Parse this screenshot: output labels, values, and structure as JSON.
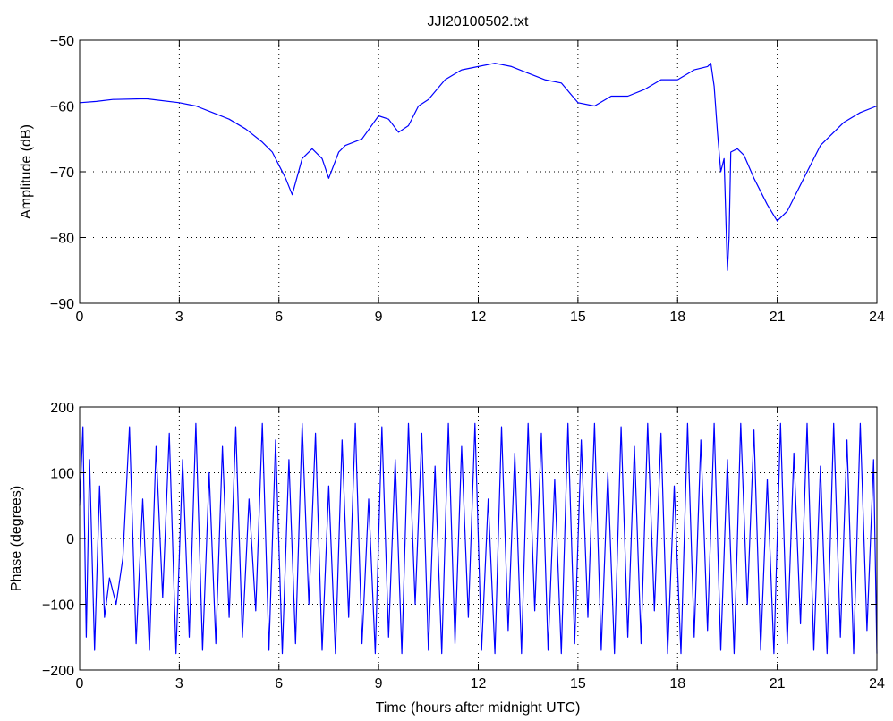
{
  "figure": {
    "title": "JJI20100502.txt"
  },
  "chart_data": [
    {
      "type": "line",
      "title": "JJI20100502.txt",
      "xlabel": "",
      "ylabel": "Amplitude (dB)",
      "xlim": [
        0,
        24
      ],
      "ylim": [
        -90,
        -50
      ],
      "xticks": [
        0,
        3,
        6,
        9,
        12,
        15,
        18,
        21,
        24
      ],
      "yticks": [
        -90,
        -80,
        -70,
        -60,
        -50
      ],
      "grid": true,
      "line_color": "#0000ff",
      "series": [
        {
          "name": "",
          "x": [
            0,
            0.5,
            1,
            2,
            3,
            3.5,
            4,
            4.5,
            5,
            5.5,
            5.8,
            6.2,
            6.4,
            6.7,
            7.0,
            7.3,
            7.5,
            7.8,
            8.0,
            8.5,
            9.0,
            9.3,
            9.6,
            9.9,
            10.2,
            10.5,
            11,
            11.5,
            12,
            12.5,
            13,
            13.5,
            14,
            14.5,
            15,
            15.5,
            16,
            16.5,
            17,
            17.5,
            18,
            18.5,
            18.9,
            19.0,
            19.1,
            19.2,
            19.3,
            19.4,
            19.5,
            19.55,
            19.6,
            19.8,
            20.0,
            20.3,
            20.7,
            21.0,
            21.3,
            21.8,
            22.3,
            23,
            23.5,
            24
          ],
          "y": [
            -59.5,
            -59.3,
            -59,
            -58.9,
            -59.5,
            -60,
            -61,
            -62,
            -63.5,
            -65.5,
            -67,
            -71,
            -73.5,
            -68,
            -66.5,
            -68,
            -71,
            -67,
            -66,
            -65,
            -61.5,
            -62,
            -64,
            -63,
            -60,
            -59,
            -56,
            -54.5,
            -54,
            -53.5,
            -54,
            -55,
            -56,
            -56.5,
            -59.5,
            -60,
            -58.5,
            -58.5,
            -57.5,
            -56,
            -56,
            -54.5,
            -54,
            -53.5,
            -57,
            -64,
            -70,
            -68,
            -85,
            -80,
            -67,
            -66.5,
            -67.5,
            -71,
            -75,
            -77.5,
            -76,
            -71,
            -66,
            -62.5,
            -61,
            -60
          ]
        }
      ]
    },
    {
      "type": "line",
      "title": "",
      "xlabel": "Time (hours after midnight UTC)",
      "ylabel": "Phase (degrees)",
      "xlim": [
        0,
        24
      ],
      "ylim": [
        -200,
        200
      ],
      "xticks": [
        0,
        3,
        6,
        9,
        12,
        15,
        18,
        21,
        24
      ],
      "yticks": [
        -200,
        -100,
        0,
        100,
        200
      ],
      "grid": true,
      "line_color": "#0000ff",
      "phase_wrap": [
        -180,
        180
      ],
      "series": [
        {
          "name": "",
          "x": [
            0,
            0.1,
            0.2,
            0.3,
            0.45,
            0.6,
            0.75,
            0.9,
            1.1,
            1.3,
            1.5,
            1.7,
            1.9,
            2.1,
            2.3,
            2.5,
            2.7,
            2.9,
            3.1,
            3.3,
            3.5,
            3.7,
            3.9,
            4.1,
            4.3,
            4.5,
            4.7,
            4.9,
            5.1,
            5.3,
            5.5,
            5.7,
            5.9,
            6.1,
            6.3,
            6.5,
            6.7,
            6.9,
            7.1,
            7.3,
            7.5,
            7.7,
            7.9,
            8.1,
            8.3,
            8.5,
            8.7,
            8.9,
            9.1,
            9.3,
            9.5,
            9.7,
            9.9,
            10.1,
            10.3,
            10.5,
            10.7,
            10.9,
            11.1,
            11.3,
            11.5,
            11.7,
            11.9,
            12.1,
            12.3,
            12.5,
            12.7,
            12.9,
            13.1,
            13.3,
            13.5,
            13.7,
            13.9,
            14.1,
            14.3,
            14.5,
            14.7,
            14.9,
            15.1,
            15.3,
            15.5,
            15.7,
            15.9,
            16.1,
            16.3,
            16.5,
            16.7,
            16.9,
            17.1,
            17.3,
            17.5,
            17.7,
            17.9,
            18.1,
            18.3,
            18.5,
            18.7,
            18.9,
            19.1,
            19.3,
            19.5,
            19.7,
            19.9,
            20.1,
            20.3,
            20.5,
            20.7,
            20.9,
            21.1,
            21.3,
            21.5,
            21.7,
            21.9,
            22.1,
            22.3,
            22.5,
            22.7,
            22.9,
            23.1,
            23.3,
            23.5,
            23.7,
            23.9,
            24
          ],
          "y": [
            50,
            170,
            -150,
            120,
            -170,
            80,
            -120,
            -60,
            -100,
            -30,
            170,
            -160,
            60,
            -170,
            140,
            -90,
            160,
            -175,
            120,
            -150,
            175,
            -170,
            100,
            -160,
            140,
            -120,
            170,
            -150,
            60,
            -110,
            175,
            -170,
            150,
            -175,
            120,
            -160,
            175,
            -100,
            160,
            -170,
            80,
            -175,
            150,
            -120,
            175,
            -160,
            60,
            -175,
            170,
            -150,
            120,
            -175,
            175,
            -100,
            160,
            -170,
            110,
            -175,
            175,
            -160,
            140,
            -120,
            175,
            -170,
            60,
            -175,
            170,
            -140,
            130,
            -175,
            175,
            -110,
            160,
            -170,
            90,
            -175,
            175,
            -160,
            150,
            -120,
            175,
            -170,
            100,
            -175,
            170,
            -150,
            140,
            -160,
            175,
            -110,
            160,
            -175,
            80,
            -175,
            175,
            -150,
            150,
            -140,
            175,
            -170,
            120,
            -175,
            175,
            -100,
            165,
            -170,
            90,
            -175,
            175,
            -160,
            130,
            -130,
            175,
            -170,
            110,
            -175,
            175,
            -150,
            150,
            -175,
            175,
            -140,
            120,
            -175
          ]
        }
      ]
    }
  ]
}
